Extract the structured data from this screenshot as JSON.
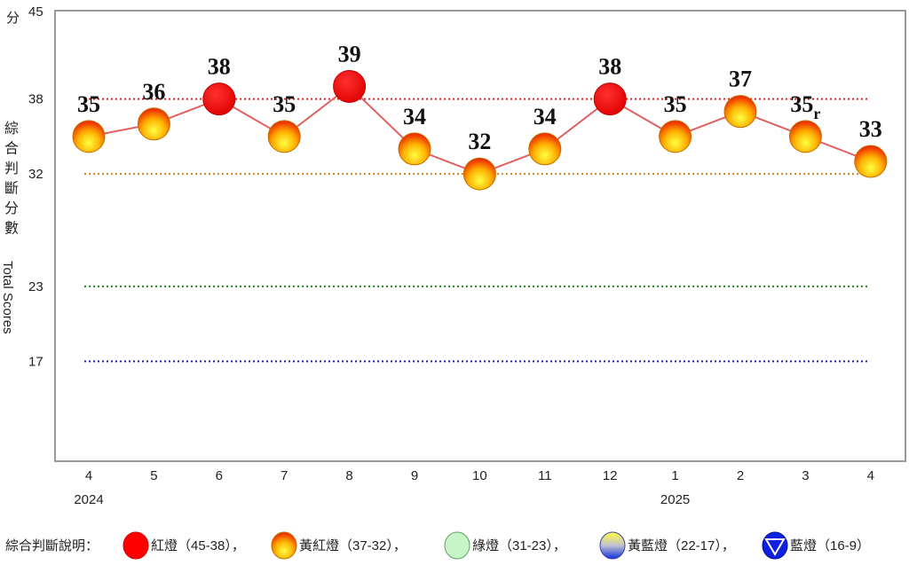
{
  "chart_data": {
    "type": "line",
    "ylabel_zh": "綜合判斷分數",
    "ylabel_unit": "分",
    "ylabel_en": "Total Scores",
    "ylim": [
      9,
      45
    ],
    "yticks": [
      45,
      38,
      32,
      23,
      17
    ],
    "categories": [
      "4",
      "5",
      "6",
      "7",
      "8",
      "9",
      "10",
      "11",
      "12",
      "1",
      "2",
      "3",
      "4"
    ],
    "year_labels": [
      {
        "index": 0,
        "label": "2024"
      },
      {
        "index": 9,
        "label": "2025"
      }
    ],
    "values": [
      35,
      36,
      38,
      35,
      39,
      34,
      32,
      34,
      38,
      35,
      37,
      35,
      33
    ],
    "value_labels": [
      "35",
      "36",
      "38",
      "35",
      "39",
      "34",
      "32",
      "34",
      "38",
      "35",
      "37",
      "35r",
      "33"
    ],
    "thresholds": [
      {
        "value": 38,
        "color": "#e02020"
      },
      {
        "value": 32,
        "color": "#d08020"
      },
      {
        "value": 23,
        "color": "#208020"
      },
      {
        "value": 17,
        "color": "#2020b0"
      }
    ],
    "line_color": "#e06060",
    "grid": false
  },
  "legend": {
    "title": "綜合判斷說明：",
    "items": [
      {
        "label": "紅燈（45-38）",
        "type": "red",
        "sep": "，"
      },
      {
        "label": "黃紅燈（37-32）",
        "type": "yellow-red",
        "sep": "，"
      },
      {
        "label": "綠燈（31-23）",
        "type": "green",
        "sep": "，"
      },
      {
        "label": "黃藍燈（22-17）",
        "type": "yellow-blue",
        "sep": "，"
      },
      {
        "label": "藍燈（16-9）",
        "type": "blue",
        "sep": ""
      }
    ]
  }
}
